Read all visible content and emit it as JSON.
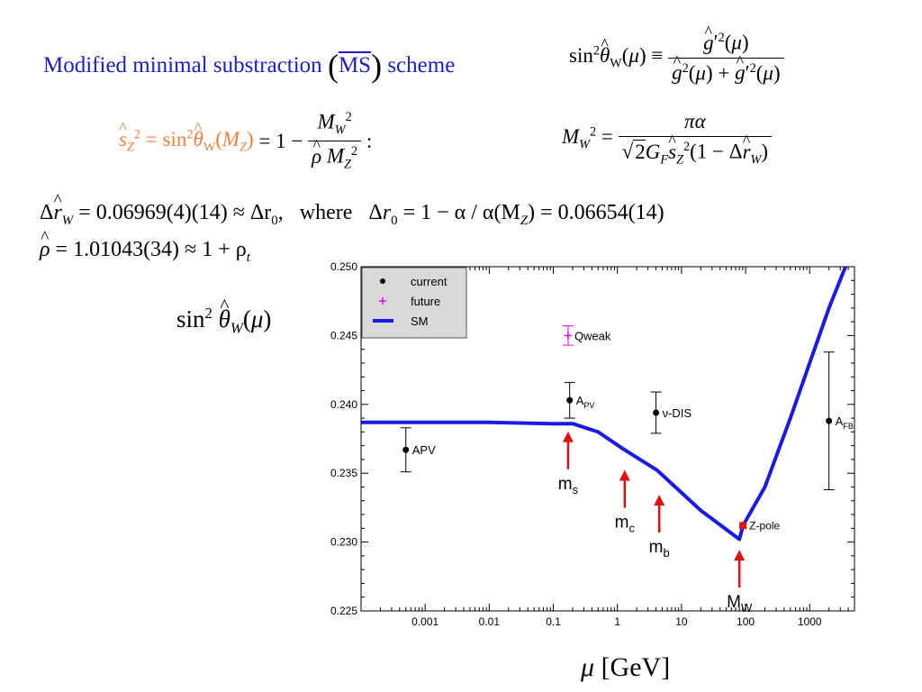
{
  "header": {
    "title": "Modified minimal substraction",
    "ms_label": "MS",
    "scheme": "scheme"
  },
  "equations": {
    "where": "where",
    "rw_value": "= 0.06969(4)(14) ≈ Δr",
    "r0_value": "= 1 − α / α(M",
    "r0_tail": ") = 0.06654(14)",
    "rho_value": "= 1.01043(34) ≈ 1 + ρ"
  },
  "ylabel_left": "sin² θ̂W (μ)",
  "xlabel_bottom": "μ [GeV]",
  "colors": {
    "title_blue": "#1d1dcc",
    "sz_orange": "#ef7f3c",
    "sm_line": "#1a1ae6",
    "arrow_red": "#e01010",
    "future_magenta": "#ee00ee",
    "legend_bg": "#d9d9d9"
  },
  "chart_data": {
    "type": "scatter",
    "xscale": "log",
    "xlim": [
      0.0001,
      5000
    ],
    "ylim": [
      0.225,
      0.25
    ],
    "grid": false,
    "legend_position": "top-left",
    "xtick_labels": [
      "0.001",
      "0.01",
      "0.1",
      "1",
      "10",
      "100",
      "1000"
    ],
    "xtick_values": [
      0.001,
      0.01,
      0.1,
      1,
      10,
      100,
      1000
    ],
    "ytick_labels": [
      "0.225",
      "0.230",
      "0.235",
      "0.240",
      "0.245",
      "0.250"
    ],
    "ytick_values": [
      0.225,
      0.23,
      0.235,
      0.24,
      0.245,
      0.25
    ],
    "legend": [
      {
        "label": "current",
        "marker": "dot"
      },
      {
        "label": "future",
        "marker": "plus"
      },
      {
        "label": "SM",
        "marker": "line"
      }
    ],
    "sm_curve": {
      "name": "SM",
      "x": [
        0.0001,
        0.001,
        0.01,
        0.1,
        0.2,
        0.5,
        1.2,
        4.2,
        20,
        80,
        91,
        200,
        500,
        1000,
        2000,
        4000
      ],
      "y": [
        0.2387,
        0.2387,
        0.2387,
        0.2386,
        0.2386,
        0.238,
        0.2368,
        0.2352,
        0.2323,
        0.2302,
        0.2312,
        0.234,
        0.239,
        0.243,
        0.247,
        0.2505
      ]
    },
    "points": [
      {
        "label": "APV",
        "x": 0.0005,
        "y": 0.2367,
        "err": 0.0016,
        "kind": "current"
      },
      {
        "label": "A",
        "sub": "PV",
        "x": 0.18,
        "y": 0.2403,
        "err": 0.0013,
        "kind": "current"
      },
      {
        "label": "ν-DIS",
        "x": 4.0,
        "y": 0.2394,
        "err": 0.0015,
        "kind": "current"
      },
      {
        "label": "A",
        "sub": "FB",
        "x": 2000,
        "y": 0.2388,
        "err": 0.005,
        "kind": "current"
      },
      {
        "label": "Qweak",
        "x": 0.17,
        "y": 0.245,
        "err": 0.0007,
        "kind": "future"
      },
      {
        "label": "Z-pole",
        "x": 91,
        "y": 0.2312,
        "err": 0,
        "kind": "zpole"
      }
    ],
    "arrows": [
      {
        "label": "m",
        "sub": "s",
        "x": 0.17,
        "y": 0.2383
      },
      {
        "label": "m",
        "sub": "c",
        "x": 1.3,
        "y": 0.2355
      },
      {
        "label": "m",
        "sub": "b",
        "x": 4.5,
        "y": 0.2337
      },
      {
        "label": "M",
        "sub": "W",
        "x": 80,
        "y": 0.2297
      }
    ]
  }
}
